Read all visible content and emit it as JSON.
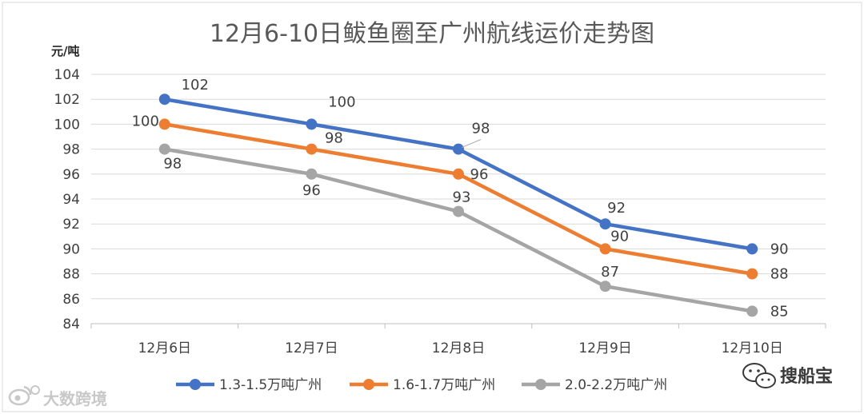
{
  "chart_data": {
    "type": "line",
    "title": "12月6-10日鲅鱼圈至广州航线运价走势图",
    "ylabel": "元/吨",
    "xlabel": "",
    "ylim": [
      84,
      104
    ],
    "yticks": [
      84,
      86,
      88,
      90,
      92,
      94,
      96,
      98,
      100,
      102,
      104
    ],
    "ytick_labels": [
      "84",
      "86",
      "88",
      "90",
      "92",
      "94",
      "96",
      "98",
      "100",
      "102",
      "104"
    ],
    "categories": [
      "12月6日",
      "12月7日",
      "12月8日",
      "12月9日",
      "12月10日"
    ],
    "grid": true,
    "legend": "bottom",
    "series": [
      {
        "name": "1.3-1.5万吨广州",
        "color": "#4472c4",
        "values": [
          102,
          100,
          98,
          92,
          90
        ],
        "labels": [
          "102",
          "100",
          "98",
          "92",
          "90"
        ]
      },
      {
        "name": "1.6-1.7万吨广州",
        "color": "#ed7d31",
        "values": [
          100,
          98,
          96,
          90,
          88
        ],
        "labels": [
          "100",
          "98",
          "96",
          "90",
          "88"
        ]
      },
      {
        "name": "2.0-2.2万吨广州",
        "color": "#a5a5a5",
        "values": [
          98,
          96,
          93,
          87,
          85
        ],
        "labels": [
          "98",
          "96",
          "93",
          "87",
          "85"
        ]
      }
    ]
  },
  "watermarks": {
    "weibo": "大数跨境",
    "wechat": "搜船宝"
  }
}
